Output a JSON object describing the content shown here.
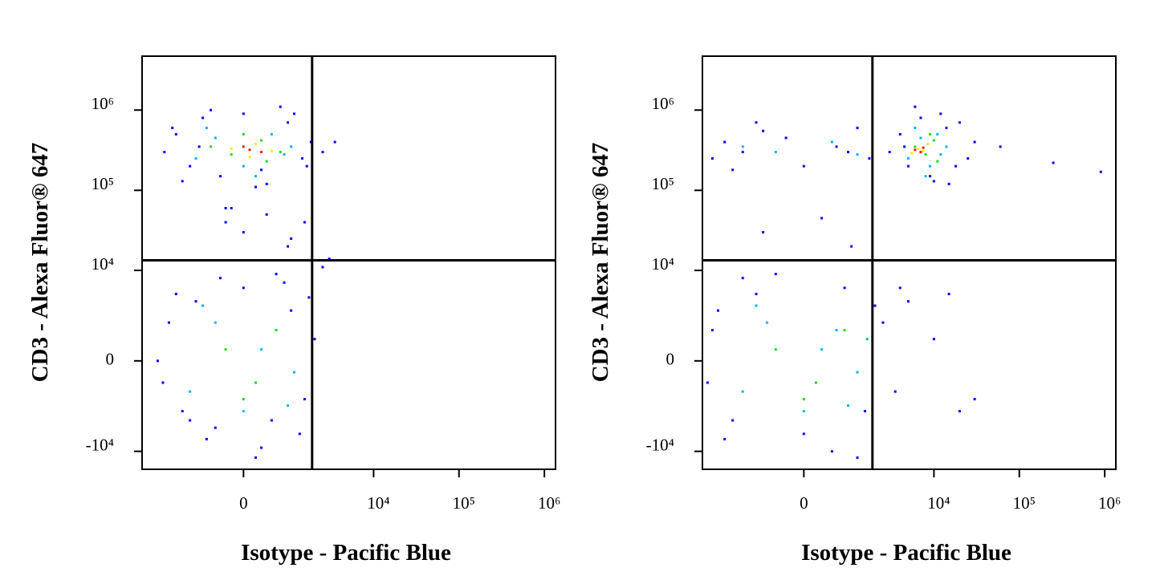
{
  "chart_data": [
    {
      "type": "scatter",
      "x_label": "Isotype - Pacific Blue",
      "y_label": "CD3 - Alexa Fluor® 647",
      "xscale": "biexponential",
      "yscale": "biexponential",
      "xlim": [
        -4600,
        1350000
      ],
      "ylim": [
        -16800,
        4700000
      ],
      "xticks": [
        0,
        {
          "value": 10000,
          "label": "10⁴"
        },
        {
          "value": 100000,
          "label": "10⁵"
        },
        {
          "value": 1000000,
          "label": "10⁶"
        }
      ],
      "yticks": [
        {
          "value": -10000,
          "label": "-10⁴"
        },
        0,
        {
          "value": 10000,
          "label": "10⁴"
        },
        {
          "value": 100000,
          "label": "10⁵"
        },
        {
          "value": 1000000,
          "label": "10⁶"
        }
      ],
      "gates": {
        "x": 1860,
        "y": 13400
      },
      "series": [
        {
          "color": "#0000ff",
          "x": [
            -2500,
            -1800,
            -1200,
            -800,
            -400,
            0,
            400,
            900,
            1400,
            1800,
            -2000,
            -1500,
            -600,
            200,
            1100,
            1600,
            -900,
            300,
            700,
            -300,
            2500,
            3500,
            -3000,
            -2200,
            -1500,
            -1000,
            -500,
            0,
            500,
            1000,
            1500,
            2000,
            -2600,
            -1800,
            -700,
            300,
            800,
            1300,
            1700,
            -1200,
            600,
            -400,
            200,
            2500,
            3000,
            1000,
            -300,
            0,
            400,
            900,
            -200,
            1500
          ],
          "y": [
            300000,
            500000,
            200000,
            800000,
            150000,
            900000,
            120000,
            700000,
            250000,
            400000,
            600000,
            130000,
            1000000,
            110000,
            900000,
            200000,
            350000,
            180000,
            1100000,
            60000,
            300000,
            400000,
            0,
            2000,
            -3000,
            4000,
            -5000,
            6000,
            -4000,
            3000,
            -2000,
            1000,
            -1000,
            5000,
            -7000,
            -9000,
            7000,
            -6000,
            4500,
            -4000,
            9000,
            8000,
            -12000,
            11000,
            14000,
            25000,
            40000,
            30000,
            50000,
            20000,
            60000,
            40000
          ]
        },
        {
          "color": "#00b4ff",
          "x": [
            -1000,
            -500,
            0,
            500,
            1000,
            -700,
            200,
            800,
            -1200,
            -500,
            0,
            600,
            1100,
            -800,
            300,
            900
          ],
          "y": [
            250000,
            450000,
            200000,
            500000,
            350000,
            600000,
            150000,
            280000,
            -1500,
            2000,
            -3000,
            1500,
            -500,
            3500,
            500,
            -2500
          ]
        },
        {
          "color": "#1edc1e",
          "x": [
            -600,
            -200,
            300,
            700,
            0,
            400,
            -300,
            200,
            600,
            0
          ],
          "y": [
            350000,
            280000,
            420000,
            300000,
            500000,
            230000,
            500,
            -1000,
            1500,
            -2000
          ]
        },
        {
          "color": "#f0f000",
          "x": [
            -200,
            200,
            500,
            100
          ],
          "y": [
            330000,
            380000,
            310000,
            260000
          ]
        },
        {
          "color": "#ff1e00",
          "x": [
            100,
            300,
            0
          ],
          "y": [
            320000,
            300000,
            350000
          ]
        }
      ]
    },
    {
      "type": "scatter",
      "x_label": "Isotype - Pacific Blue",
      "y_label": "CD3 - Alexa Fluor® 647",
      "xscale": "biexponential",
      "yscale": "biexponential",
      "xlim": [
        -4600,
        1350000
      ],
      "ylim": [
        -16800,
        4700000
      ],
      "xticks": [
        0,
        {
          "value": 10000,
          "label": "10⁴"
        },
        {
          "value": 100000,
          "label": "10⁵"
        },
        {
          "value": 1000000,
          "label": "10⁶"
        }
      ],
      "yticks": [
        {
          "value": -10000,
          "label": "-10⁴"
        },
        0,
        {
          "value": 10000,
          "label": "10⁴"
        },
        {
          "value": 100000,
          "label": "10⁵"
        },
        {
          "value": 1000000,
          "label": "10⁶"
        }
      ],
      "gates": {
        "x": 1860,
        "y": 13400
      },
      "series": [
        {
          "color": "#0000ff",
          "x": [
            3000,
            4000,
            5000,
            7000,
            9000,
            12000,
            15000,
            20000,
            25000,
            30000,
            6000,
            10000,
            14000,
            4500,
            18000,
            250000,
            900000,
            60000,
            -3500,
            -2500,
            -1500,
            -800,
            0,
            600,
            1200,
            1700,
            -2000,
            -300,
            900,
            -1000,
            -4000,
            -3000,
            -2000,
            -1000,
            0,
            800,
            1500,
            2500,
            3500,
            5000,
            -2500,
            -1500,
            -500,
            500,
            1200,
            2000,
            10000,
            15000,
            20000,
            30000,
            -3500,
            1000,
            4000,
            -800,
            300
          ],
          "y": [
            300000,
            500000,
            200000,
            800000,
            150000,
            900000,
            120000,
            700000,
            250000,
            400000,
            1100000,
            130000,
            600000,
            350000,
            200000,
            220000,
            170000,
            350000,
            250000,
            400000,
            300000,
            550000,
            200000,
            350000,
            600000,
            250000,
            180000,
            450000,
            300000,
            700000,
            -1000,
            3000,
            -4000,
            5000,
            -6000,
            6000,
            -3000,
            2000,
            -1500,
            4000,
            -7000,
            8000,
            9000,
            -10000,
            -12000,
            3500,
            1000,
            5000,
            -3000,
            -2000,
            1500,
            20000,
            6000,
            30000,
            45000
          ]
        },
        {
          "color": "#00b4ff",
          "x": [
            5000,
            7000,
            9000,
            11000,
            14000,
            6000,
            8000,
            12000,
            -1500,
            -500,
            500,
            1200,
            -1500,
            -700,
            0,
            600,
            1200,
            -1000,
            300,
            900,
            1600
          ],
          "y": [
            250000,
            450000,
            200000,
            500000,
            350000,
            600000,
            150000,
            280000,
            350000,
            300000,
            400000,
            280000,
            -1500,
            2000,
            -3000,
            1500,
            -500,
            3500,
            500,
            -2500,
            1000
          ]
        },
        {
          "color": "#1edc1e",
          "x": [
            6000,
            8000,
            10000,
            7000,
            9000,
            11000,
            -500,
            200,
            800,
            0
          ],
          "y": [
            350000,
            280000,
            420000,
            300000,
            500000,
            230000,
            500,
            -1000,
            1500,
            -2000
          ]
        },
        {
          "color": "#f0f000",
          "x": [
            6500,
            8500,
            7500,
            5500
          ],
          "y": [
            330000,
            380000,
            310000,
            290000
          ]
        },
        {
          "color": "#ff1e00",
          "x": [
            6000,
            7000,
            7500
          ],
          "y": [
            320000,
            300000,
            340000
          ]
        }
      ]
    }
  ]
}
